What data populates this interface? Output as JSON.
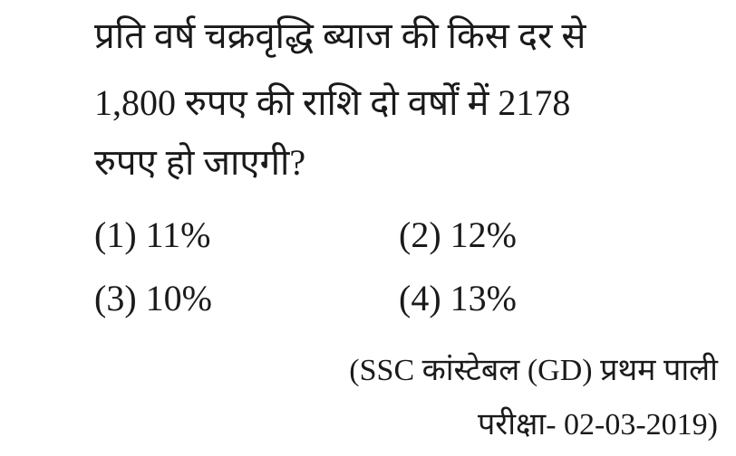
{
  "question": {
    "lines": [
      "प्रति वर्ष चक्रवृद्धि ब्याज की किस दर से",
      "1,800 रुपए की राशि दो वर्षों में 2178",
      "रुपए हो जाएगी?"
    ]
  },
  "options": [
    "(1) 11%",
    "(2) 12%",
    "(3) 10%",
    "(4) 13%"
  ],
  "source": {
    "line1": "(SSC कांस्टेबल (GD) प्रथम पाली",
    "line2": "परीक्षा- 02-03-2019)"
  }
}
